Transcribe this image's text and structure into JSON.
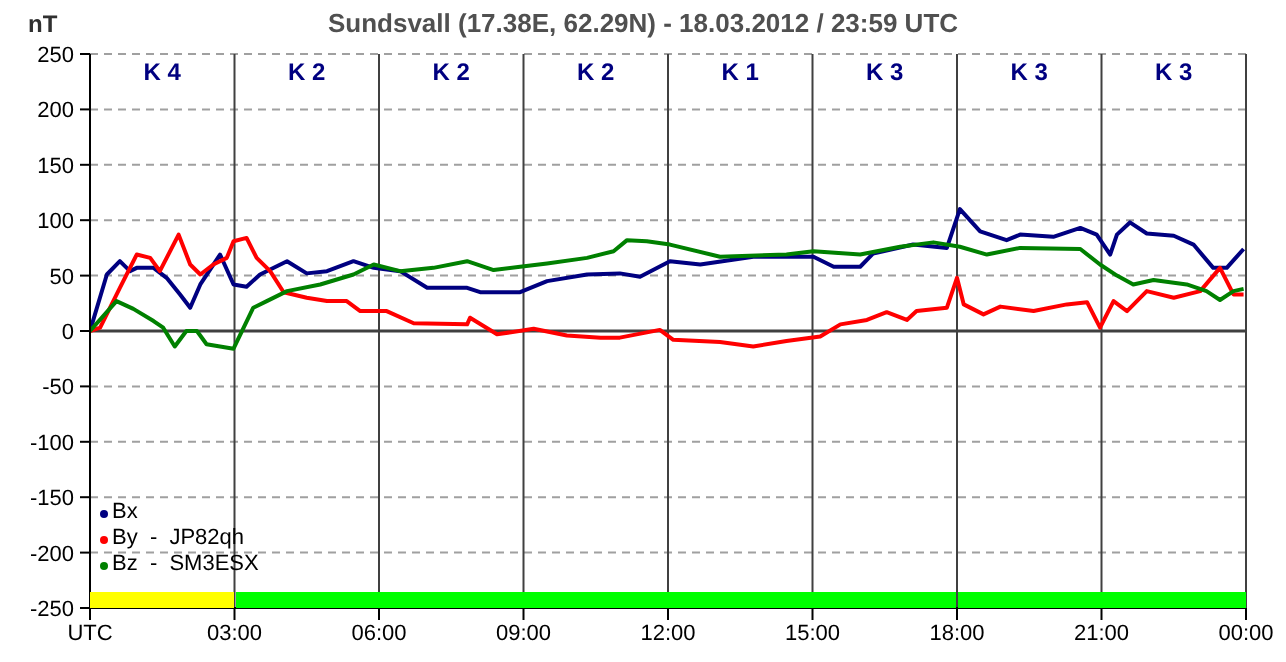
{
  "chart_data": {
    "type": "line",
    "title": "Sundsvall (17.38E, 62.29N) - 18.03.2012 / 23:59  UTC",
    "ylabel": "nT",
    "xlim": [
      0,
      24
    ],
    "xticks": [
      {
        "value": 0,
        "label": "UTC"
      },
      {
        "value": 3,
        "label": "03:00"
      },
      {
        "value": 6,
        "label": "06:00"
      },
      {
        "value": 9,
        "label": "09:00"
      },
      {
        "value": 12,
        "label": "12:00"
      },
      {
        "value": 15,
        "label": "15:00"
      },
      {
        "value": 18,
        "label": "18:00"
      },
      {
        "value": 21,
        "label": "21:00"
      },
      {
        "value": 24,
        "label": "00:00"
      }
    ],
    "ylim": [
      -250,
      250
    ],
    "yticks": [
      -250,
      -200,
      -150,
      -100,
      -50,
      0,
      50,
      100,
      150,
      200,
      250
    ],
    "grid": true,
    "legend": "bottom left",
    "marker": "none",
    "line_style": "solid",
    "ref_lines": [
      {
        "axis": "y",
        "value": 0,
        "color": "#404040"
      }
    ],
    "annotations": [
      "K 4",
      "K 2",
      "K 2",
      "K 2",
      "K 1",
      "K 3",
      "K 3",
      "K 3"
    ],
    "series": [
      {
        "name": "Bx",
        "color": "#000080",
        "x": [
          0,
          0.35,
          0.62,
          0.83,
          0.97,
          1.32,
          1.59,
          1.87,
          2.08,
          2.29,
          2.7,
          2.98,
          3.25,
          3.53,
          4.09,
          4.5,
          4.92,
          5.47,
          5.89,
          6.44,
          7.0,
          7.83,
          8.1,
          8.93,
          9.49,
          10.32,
          11.0,
          11.42,
          12.04,
          12.67,
          13.77,
          15.02,
          15.44,
          15.99,
          16.26,
          17.09,
          17.79,
          18.06,
          18.48,
          19.03,
          19.31,
          20.0,
          20.56,
          20.9,
          21.18,
          21.32,
          21.59,
          21.94,
          22.5,
          22.91,
          23.32,
          23.6,
          23.95
        ],
        "values": [
          0,
          51,
          63,
          54,
          57,
          57,
          48,
          33,
          21,
          42,
          69,
          42,
          40,
          51,
          63,
          52,
          54,
          63,
          57,
          54,
          39,
          39,
          35,
          35,
          45,
          51,
          52,
          49,
          63,
          60,
          67,
          67,
          58,
          58,
          70,
          78,
          75,
          110,
          90,
          82,
          87,
          85,
          93,
          87,
          69,
          87,
          98,
          88,
          86,
          78,
          57,
          57,
          74
        ]
      },
      {
        "name": "By  -  JP82qh",
        "color": "#ff0000",
        "x": [
          0,
          0.21,
          0.62,
          0.97,
          1.25,
          1.45,
          1.84,
          2.08,
          2.29,
          2.56,
          2.84,
          2.98,
          3.25,
          3.46,
          3.74,
          4.02,
          4.5,
          4.92,
          5.33,
          5.61,
          6.16,
          6.72,
          7.83,
          7.89,
          8.45,
          9.21,
          9.9,
          10.6,
          11.0,
          11.83,
          12.11,
          13.08,
          13.77,
          14.46,
          15.16,
          15.58,
          16.13,
          16.54,
          16.96,
          17.16,
          17.79,
          18.0,
          18.14,
          18.55,
          18.9,
          19.59,
          20.28,
          20.7,
          20.97,
          21.25,
          21.53,
          21.94,
          22.5,
          23.05,
          23.46,
          23.74,
          23.95
        ],
        "values": [
          0,
          3,
          39,
          69,
          66,
          54,
          87,
          60,
          51,
          60,
          66,
          81,
          84,
          66,
          54,
          35,
          30,
          27,
          27,
          18,
          18,
          7,
          6,
          12,
          -3,
          2,
          -4,
          -6,
          -6,
          1,
          -8,
          -10,
          -14,
          -9,
          -5,
          6,
          10,
          17,
          10,
          18,
          21,
          48,
          24,
          15,
          22,
          18,
          24,
          26,
          3,
          27,
          18,
          36,
          30,
          36,
          57,
          33,
          33
        ]
      },
      {
        "name": "Bz  -  SM3ESX",
        "color": "#008000",
        "x": [
          0,
          0.55,
          0.9,
          1.32,
          1.52,
          1.76,
          2.0,
          2.22,
          2.42,
          2.98,
          3.39,
          3.67,
          4.09,
          4.78,
          5.47,
          5.89,
          6.44,
          7.13,
          7.83,
          8.38,
          8.93,
          9.49,
          10.32,
          10.87,
          11.15,
          11.56,
          12.04,
          13.08,
          14.46,
          15.02,
          15.99,
          16.82,
          17.51,
          18.06,
          18.62,
          19.31,
          20.56,
          20.97,
          21.32,
          21.66,
          22.08,
          22.77,
          23.18,
          23.46,
          23.74,
          23.95
        ],
        "values": [
          0,
          27,
          20,
          9,
          3,
          -14,
          0,
          0,
          -12,
          -16,
          21,
          27,
          36,
          42,
          51,
          60,
          54,
          57,
          63,
          55,
          58,
          61,
          66,
          72,
          82,
          81,
          78,
          67,
          69,
          72,
          69,
          76,
          80,
          76,
          69,
          75,
          74,
          60,
          50,
          42,
          46,
          42,
          36,
          28,
          36,
          38
        ]
      }
    ]
  }
}
